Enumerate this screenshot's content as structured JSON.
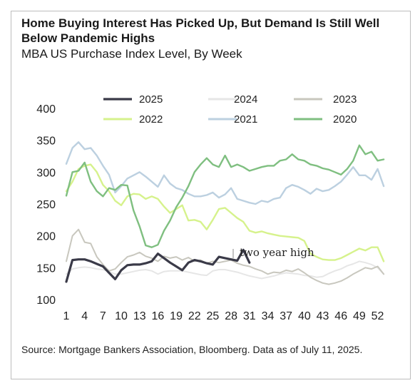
{
  "header": {
    "title": "Home Buying Interest Has Picked Up, But Demand Is Still Well Below Pandemic Highs",
    "subtitle": "MBA US Purchase Index Level, By Week"
  },
  "footer": {
    "source": "Source: Mortgage Bankers Association, Bloomberg. Data as of July 11, 2025."
  },
  "chart_data": {
    "type": "line",
    "title": "Home Buying Interest Has Picked Up, But Demand Is Still Well Below Pandemic Highs",
    "subtitle": "MBA US Purchase Index Level, By Week",
    "xlabel": "",
    "ylabel": "",
    "xlim": [
      1,
      53
    ],
    "ylim": [
      100,
      400
    ],
    "x_ticks": [
      "1",
      "4",
      "7",
      "10",
      "13",
      "16",
      "19",
      "22",
      "25",
      "28",
      "31",
      "34",
      "37",
      "40",
      "43",
      "46",
      "49",
      "52"
    ],
    "y_ticks": [
      "100",
      "150",
      "200",
      "250",
      "300",
      "350",
      "400"
    ],
    "grid": false,
    "legend": "top",
    "annotation": {
      "text": "two year high",
      "x": 27.5,
      "y": 178
    },
    "series": [
      {
        "name": "2025",
        "color": "#3a3a48",
        "width": 3.2,
        "values": [
          128,
          162,
          163,
          163,
          160,
          156,
          152,
          142,
          132,
          146,
          154,
          155,
          155,
          157,
          160,
          172,
          165,
          158,
          152,
          146,
          158,
          162,
          160,
          157,
          155,
          167,
          165,
          163,
          161,
          178,
          158
        ]
      },
      {
        "name": "2024",
        "color": "#e6e6e6",
        "width": 2,
        "values": [
          140,
          148,
          150,
          151,
          150,
          148,
          147,
          144,
          140,
          140,
          142,
          144,
          146,
          147,
          145,
          140,
          144,
          145,
          145,
          145,
          143,
          141,
          139,
          138,
          145,
          147,
          147,
          145,
          143,
          140,
          137,
          135,
          133,
          135,
          137,
          140,
          142,
          141,
          140,
          138,
          137,
          135,
          136,
          141,
          145,
          148,
          153,
          156,
          160,
          158,
          155,
          150,
          140
        ]
      },
      {
        "name": "2023",
        "color": "#c8c7be",
        "width": 2,
        "values": [
          160,
          200,
          210,
          190,
          188,
          167,
          155,
          145,
          148,
          158,
          167,
          170,
          174,
          168,
          165,
          160,
          168,
          165,
          167,
          162,
          166,
          160,
          162,
          157,
          160,
          158,
          160,
          162,
          157,
          154,
          152,
          148,
          145,
          140,
          143,
          142,
          146,
          144,
          148,
          142,
          135,
          130,
          126,
          124,
          126,
          129,
          134,
          140,
          145,
          150,
          148,
          152,
          140
        ]
      },
      {
        "name": "2022",
        "color": "#d6f28c",
        "width": 2.4,
        "values": [
          270,
          285,
          305,
          310,
          312,
          300,
          280,
          270,
          255,
          248,
          262,
          266,
          265,
          258,
          262,
          258,
          246,
          236,
          242,
          248,
          224,
          225,
          222,
          210,
          225,
          242,
          244,
          236,
          228,
          222,
          208,
          205,
          207,
          204,
          202,
          200,
          199,
          198,
          197,
          192,
          172,
          167,
          163,
          162,
          162,
          165,
          170,
          175,
          180,
          177,
          182,
          182,
          160
        ]
      },
      {
        "name": "2021",
        "color": "#bcd0e0",
        "width": 2.4,
        "values": [
          313,
          338,
          347,
          336,
          338,
          326,
          310,
          296,
          268,
          278,
          290,
          295,
          300,
          293,
          285,
          277,
          295,
          282,
          275,
          272,
          266,
          262,
          262,
          264,
          268,
          260,
          265,
          275,
          258,
          255,
          252,
          250,
          255,
          253,
          258,
          260,
          275,
          280,
          277,
          272,
          266,
          274,
          270,
          272,
          278,
          285,
          296,
          308,
          295,
          295,
          288,
          305,
          278
        ]
      },
      {
        "name": "2020",
        "color": "#7fbf80",
        "width": 2.4,
        "values": [
          263,
          300,
          302,
          315,
          285,
          270,
          262,
          275,
          272,
          280,
          279,
          240,
          215,
          185,
          182,
          186,
          208,
          224,
          245,
          260,
          278,
          300,
          312,
          322,
          312,
          308,
          326,
          308,
          312,
          308,
          302,
          305,
          308,
          310,
          310,
          318,
          320,
          328,
          320,
          318,
          312,
          310,
          306,
          304,
          300,
          296,
          305,
          318,
          342,
          328,
          332,
          318,
          320
        ]
      }
    ]
  }
}
